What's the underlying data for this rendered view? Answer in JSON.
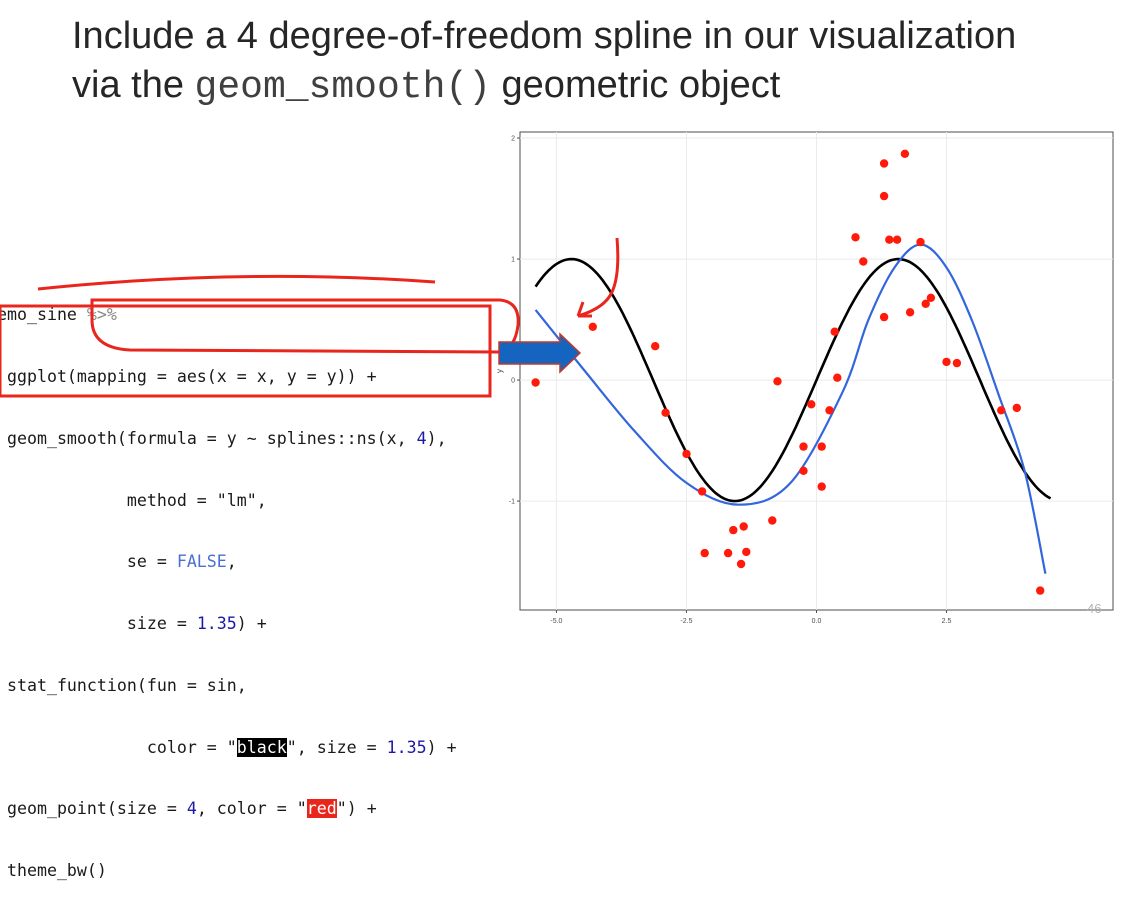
{
  "slide": {
    "title_line1": "Include a 4 degree-of-freedom spline in our visualization",
    "title_line2_pre": "via the ",
    "title_line2_code": "geom_smooth()",
    "title_line2_post": " geometric object",
    "page_number": "46"
  },
  "code": {
    "l1_a": "emo_sine ",
    "l1_pipe": "%>%",
    "l2": " ggplot(mapping = aes(x = x, y = y)) +",
    "l3_a": " geom_smooth(formula = y ~ splines::ns(x, ",
    "l3_num": "4",
    "l3_b": "),",
    "l4": "             method = \"lm\",",
    "l5_a": "             se = ",
    "l5_kw": "FALSE",
    "l5_b": ",",
    "l6_a": "             size = ",
    "l6_num": "1.35",
    "l6_b": ") +",
    "l7": " stat_function(fun = sin,",
    "l8_a": "               color = \"",
    "l8_hl": "black",
    "l8_b": "\", size = ",
    "l8_num": "1.35",
    "l8_c": ") +",
    "l9_a": " geom_point(size = ",
    "l9_num": "4",
    "l9_b": ", color = \"",
    "l9_hl": "red",
    "l9_c": "\") +",
    "l10": " theme_bw()"
  },
  "colors": {
    "points": "#ff1a0a",
    "sine_line": "#000000",
    "spline_line": "#3366dd",
    "annotation_red": "#e8261c",
    "arrow_blue": "#1565c0"
  },
  "chart_data": {
    "type": "scatter",
    "xlabel": "",
    "ylabel": "y",
    "xlim": [
      -5.7,
      5.7
    ],
    "ylim": [
      -1.9,
      2.05
    ],
    "x_ticks": [
      -5.0,
      -2.5,
      0.0,
      2.5
    ],
    "x_tick_labels": [
      "-5.0",
      "-2.5",
      "0.0",
      "2.5"
    ],
    "y_ticks": [
      -1,
      0,
      1,
      2
    ],
    "y_tick_labels": [
      "-1",
      "0",
      "1",
      "2"
    ],
    "grid": true,
    "points": [
      [
        -5.4,
        -0.02
      ],
      [
        -4.3,
        0.44
      ],
      [
        -3.1,
        0.28
      ],
      [
        -2.9,
        -0.27
      ],
      [
        -2.5,
        -0.61
      ],
      [
        -2.2,
        -0.92
      ],
      [
        -2.15,
        -1.43
      ],
      [
        -1.7,
        -1.43
      ],
      [
        -1.6,
        -1.24
      ],
      [
        -1.45,
        -1.52
      ],
      [
        -1.4,
        -1.21
      ],
      [
        -1.35,
        -1.42
      ],
      [
        -0.85,
        -1.16
      ],
      [
        -0.75,
        -0.01
      ],
      [
        -0.25,
        -0.55
      ],
      [
        -0.25,
        -0.75
      ],
      [
        -0.1,
        -0.2
      ],
      [
        0.1,
        -0.55
      ],
      [
        0.1,
        -0.88
      ],
      [
        0.25,
        -0.25
      ],
      [
        0.35,
        0.4
      ],
      [
        0.4,
        0.02
      ],
      [
        0.75,
        1.18
      ],
      [
        0.9,
        0.98
      ],
      [
        1.3,
        0.52
      ],
      [
        1.3,
        1.52
      ],
      [
        1.3,
        1.79
      ],
      [
        1.4,
        1.16
      ],
      [
        1.55,
        1.16
      ],
      [
        1.7,
        1.87
      ],
      [
        1.8,
        0.56
      ],
      [
        2.0,
        1.14
      ],
      [
        2.1,
        0.63
      ],
      [
        2.2,
        0.68
      ],
      [
        2.5,
        0.15
      ],
      [
        2.7,
        0.14
      ],
      [
        3.55,
        -0.25
      ],
      [
        3.85,
        -0.23
      ],
      [
        4.3,
        -1.74
      ]
    ],
    "series": [
      {
        "name": "",
        "function": "sin",
        "x_range": [
          -5.4,
          4.5
        ]
      },
      {
        "name": "",
        "function": "ns spline",
        "x": [
          -5.4,
          -4.5,
          -3.5,
          -2.5,
          -1.5,
          -0.5,
          0.5,
          1.0,
          1.5,
          2.0,
          2.5,
          3.0,
          3.5,
          4.0,
          4.4
        ],
        "y": [
          0.58,
          0.1,
          -0.42,
          -0.85,
          -1.03,
          -0.85,
          -0.1,
          0.5,
          0.93,
          1.12,
          0.93,
          0.48,
          -0.12,
          -0.75,
          -1.6
        ]
      }
    ]
  }
}
